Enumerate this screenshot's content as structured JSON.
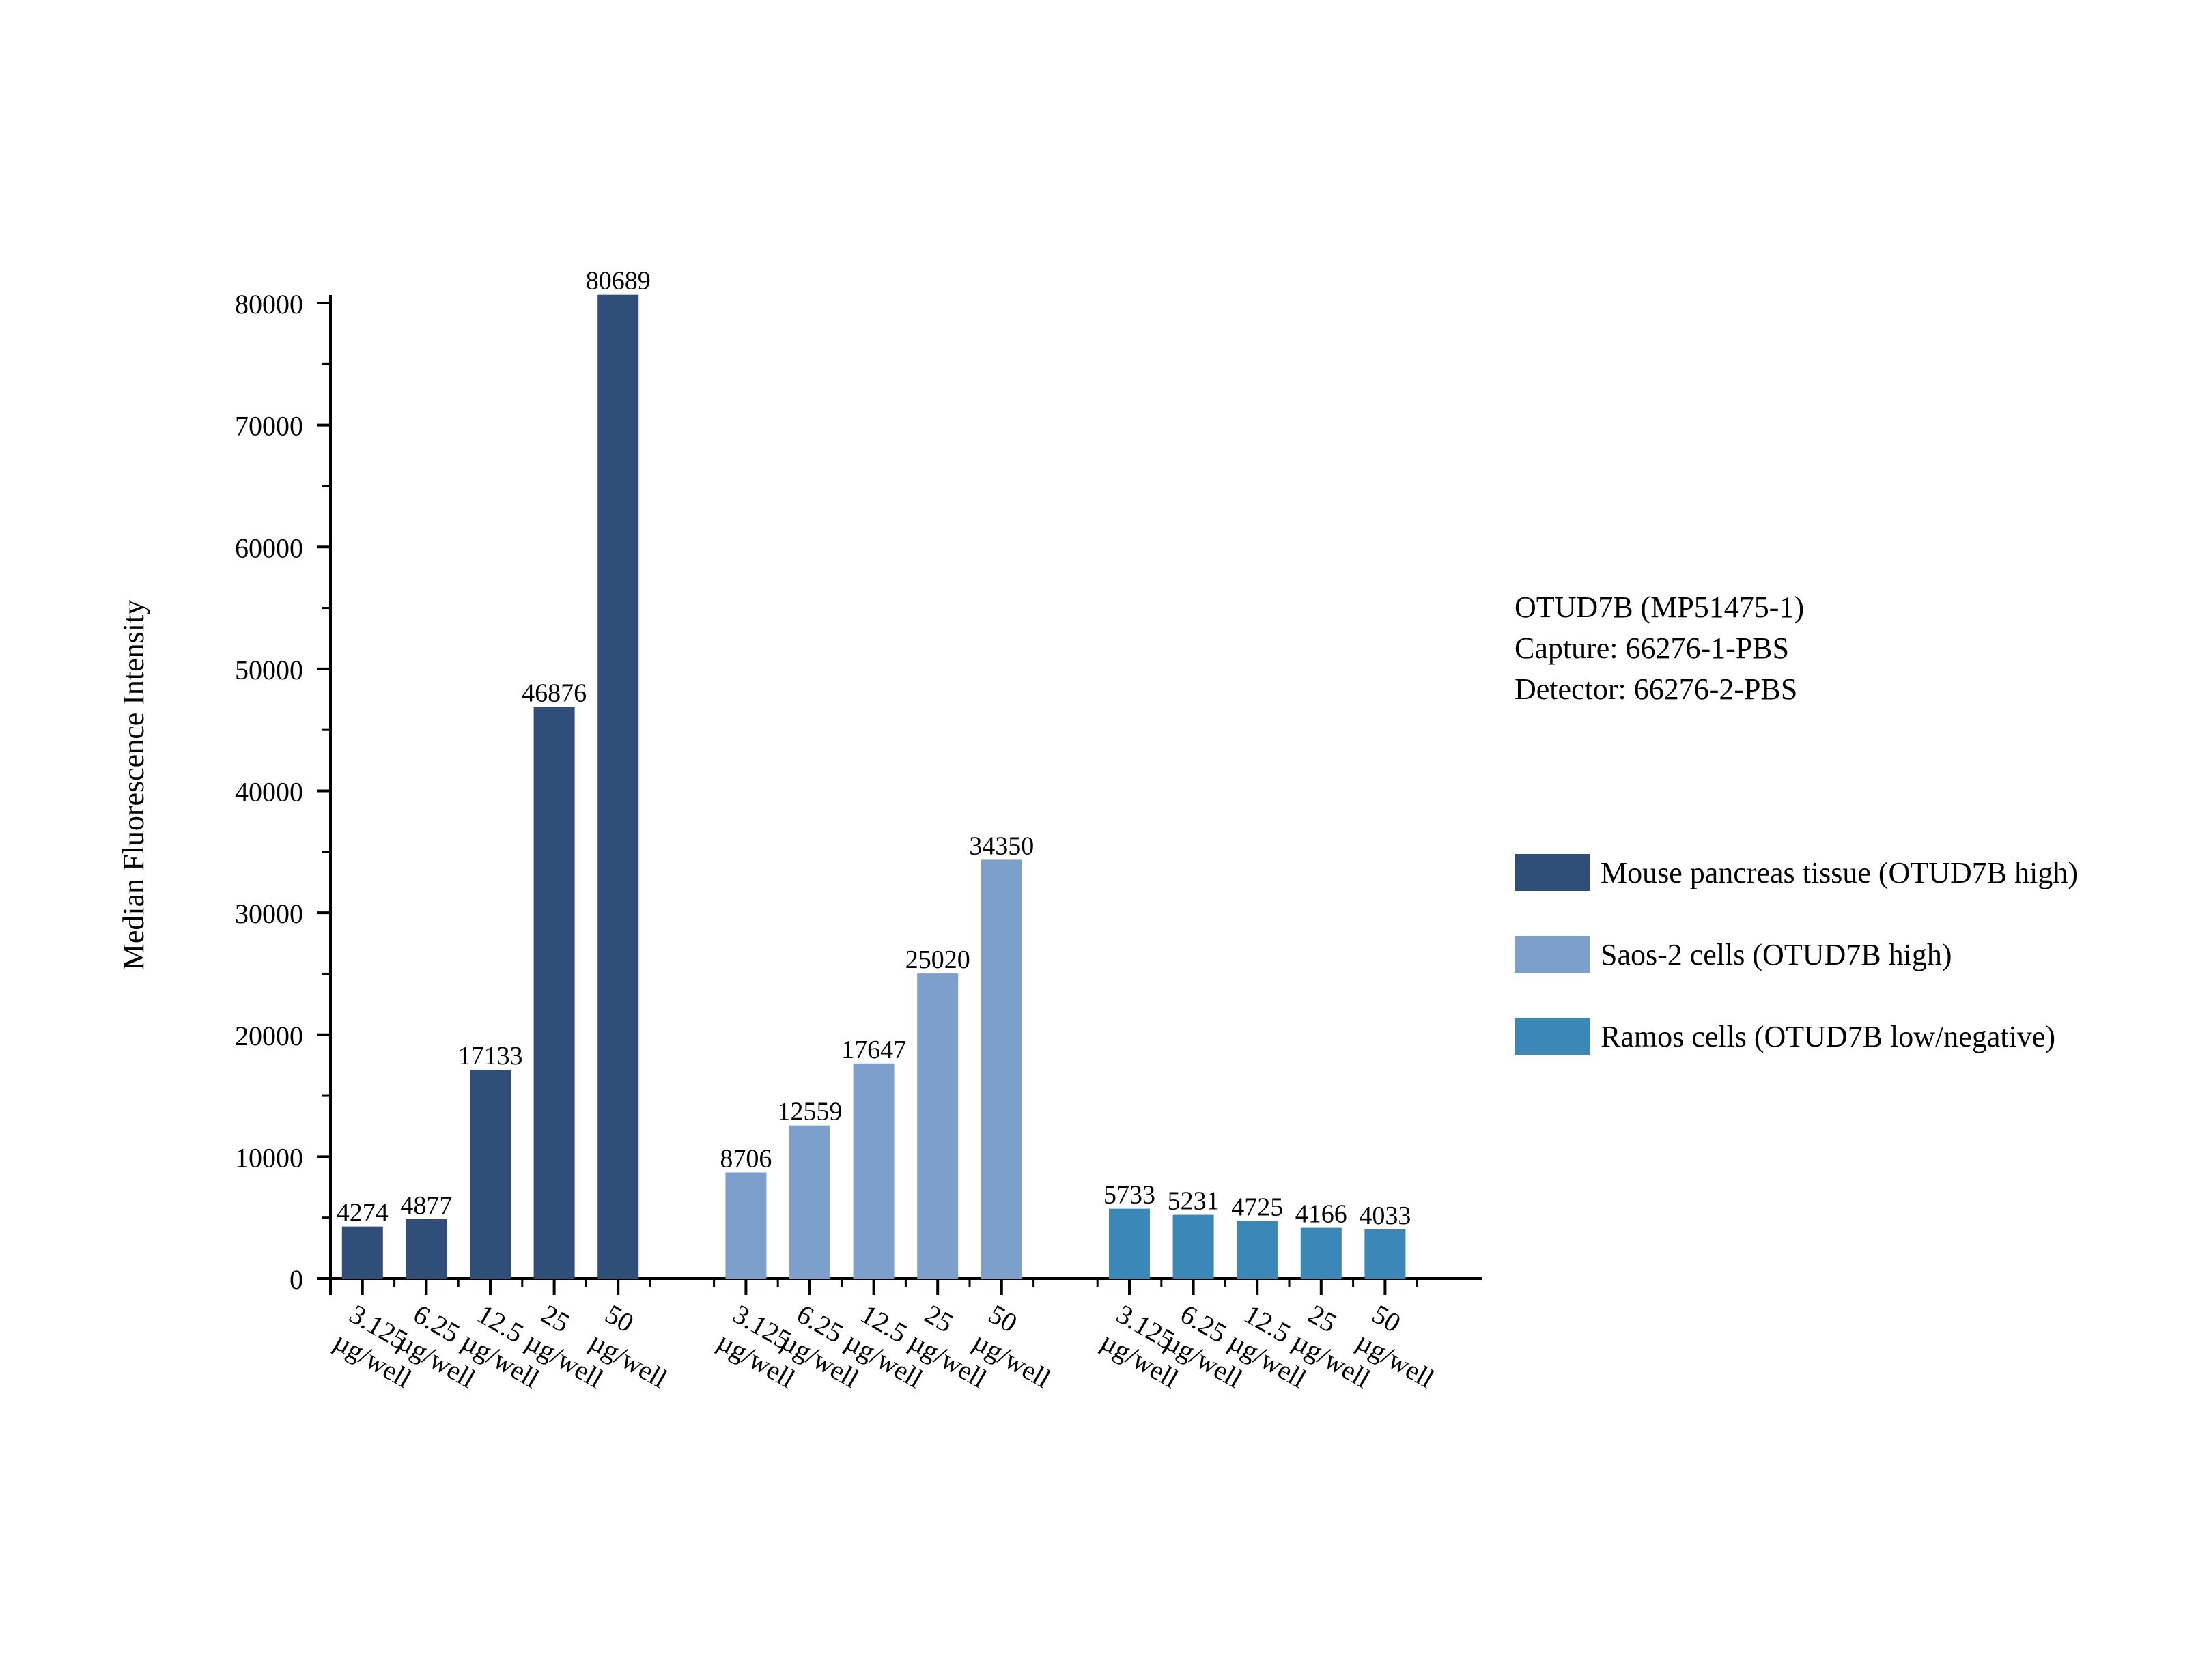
{
  "chart_data": {
    "type": "bar",
    "ylabel": "Median Fluorescence Intensity",
    "ylim": [
      0,
      80000
    ],
    "yticks": [
      "0",
      "10000",
      "20000",
      "30000",
      "40000",
      "50000",
      "60000",
      "70000",
      "80000"
    ],
    "categories": [
      [
        "3.125",
        "µg/well"
      ],
      [
        "6.25",
        "µg/well"
      ],
      [
        "12.5",
        "µg/well"
      ],
      [
        "25",
        "µg/well"
      ],
      [
        "50",
        "µg/well"
      ]
    ],
    "series": [
      {
        "name": "Mouse pancreas tissue (OTUD7B high)",
        "color": "#2f4e78",
        "values": [
          4274,
          4877,
          17133,
          46876,
          80689
        ]
      },
      {
        "name": "Saos-2 cells (OTUD7B high)",
        "color": "#7c9fcc",
        "values": [
          8706,
          12559,
          17647,
          25020,
          34350
        ]
      },
      {
        "name": "Ramos cells (OTUD7B low/negative)",
        "color": "#3a87b8",
        "values": [
          5733,
          5231,
          4725,
          4166,
          4033
        ]
      }
    ]
  },
  "info": {
    "line1": "OTUD7B (MP51475-1)",
    "line2": "Capture: 66276-1-PBS",
    "line3": "Detector: 66276-2-PBS"
  }
}
